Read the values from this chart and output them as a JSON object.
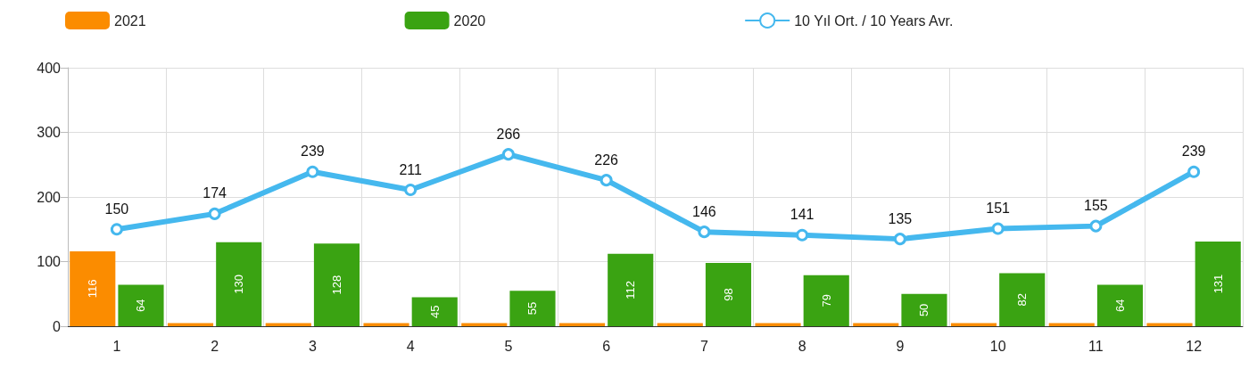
{
  "chart_data": {
    "type": "bar",
    "categories": [
      "1",
      "2",
      "3",
      "4",
      "5",
      "6",
      "7",
      "8",
      "9",
      "10",
      "11",
      "12"
    ],
    "series": [
      {
        "name": "2021",
        "color": "#fb8c00",
        "values": [
          116,
          5,
          5,
          5,
          5,
          5,
          5,
          5,
          5,
          5,
          5,
          5
        ],
        "value_labels": [
          "116",
          null,
          null,
          null,
          null,
          null,
          null,
          null,
          null,
          null,
          null,
          null
        ]
      },
      {
        "name": "2020",
        "color": "#3aa312",
        "values": [
          64,
          130,
          128,
          45,
          55,
          112,
          98,
          79,
          50,
          82,
          64,
          131
        ]
      },
      {
        "name": "10 Yıl Ort. / 10 Years Avr.",
        "type": "line",
        "color": "#45b8ee",
        "values": [
          150,
          174,
          239,
          211,
          266,
          226,
          146,
          141,
          135,
          151,
          155,
          239
        ]
      }
    ],
    "ylim": [
      0,
      400
    ],
    "yticks": [
      0,
      100,
      200,
      300,
      400
    ],
    "grid": true,
    "legend": "top",
    "marker": "circle",
    "line_style": "solid",
    "data_labels": true
  }
}
